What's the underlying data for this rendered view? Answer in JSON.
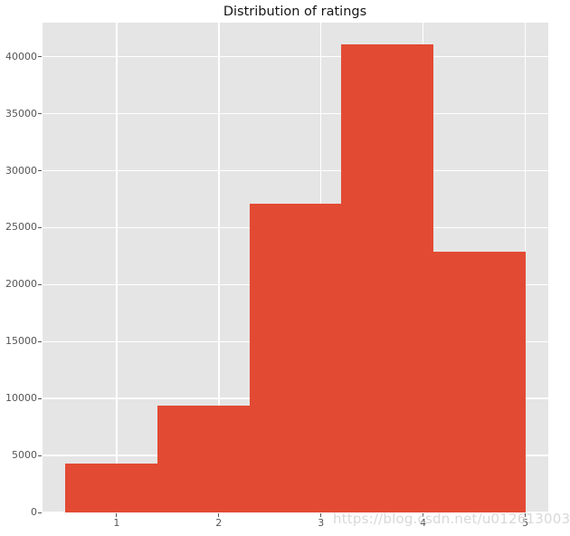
{
  "chart_data": {
    "type": "histogram",
    "title": "Distribution of ratings",
    "xlabel": "",
    "ylabel": "",
    "bin_edges": [
      0.5,
      1.4,
      2.3,
      3.2,
      4.1,
      5.0
    ],
    "counts": [
      4300,
      9350,
      27100,
      41100,
      22900
    ],
    "x_ticks": [
      1,
      2,
      3,
      4,
      5
    ],
    "y_ticks": [
      0,
      5000,
      10000,
      15000,
      20000,
      25000,
      30000,
      35000,
      40000
    ],
    "xlim": [
      0.275,
      5.225
    ],
    "ylim": [
      0,
      43000
    ],
    "grid": true,
    "legend": "none",
    "style": "ggplot",
    "bar_color": "#E24A33",
    "plot_bg_color": "#E5E5E5",
    "grid_color": "#FFFFFF",
    "tick_color": "#555555",
    "title_color": "#151515"
  },
  "watermark": {
    "text": "https://blog.csdn.net/u012613003"
  }
}
